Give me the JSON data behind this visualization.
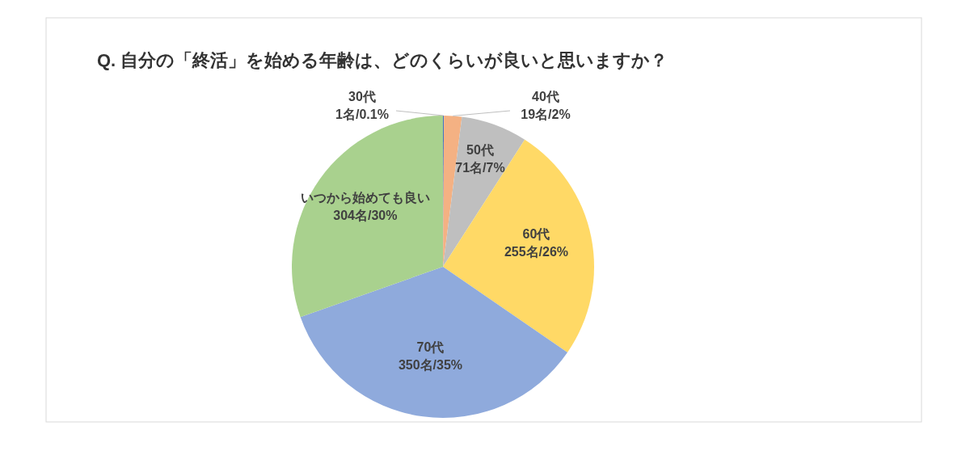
{
  "chart_data": {
    "type": "pie",
    "title": "Q. 自分の「終活」を始める年齢は、どのくらいが良いと思いますか？",
    "categories": [
      "30代",
      "40代",
      "50代",
      "60代",
      "70代",
      "いつから始めても良い"
    ],
    "values": [
      1,
      19,
      71,
      255,
      350,
      304
    ],
    "value_labels": [
      "1名/0.1%",
      "19名/2%",
      "71名/7%",
      "255名/26%",
      "350名/35%",
      "304名/30%"
    ],
    "colors": [
      "#4472c4",
      "#f4b183",
      "#bfbfbf",
      "#ffd966",
      "#8faadc",
      "#a9d18e"
    ]
  }
}
